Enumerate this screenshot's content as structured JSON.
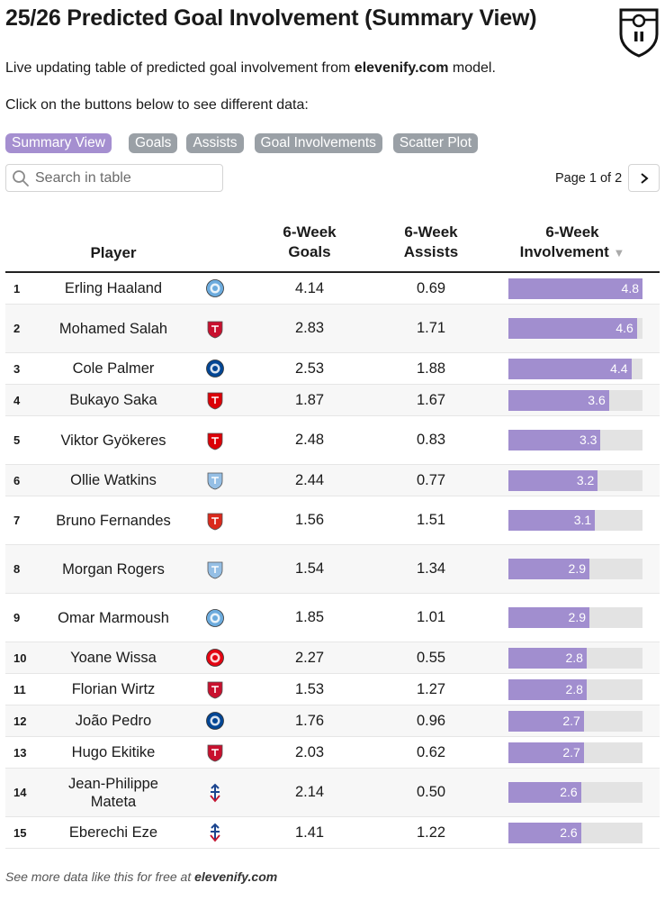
{
  "header": {
    "title": "25/26 Predicted Goal Involvement (Summary View)",
    "subtitle_prefix": "Live updating table of predicted goal involvement from ",
    "subtitle_site": "elevenify.com",
    "subtitle_suffix": " model.",
    "instructions": "Click on the buttons below to see different data:"
  },
  "buttons": [
    {
      "label": "Summary View",
      "active": true
    },
    {
      "label": "Goals",
      "active": false
    },
    {
      "label": "Assists",
      "active": false
    },
    {
      "label": "Goal Involvements",
      "active": false
    },
    {
      "label": "Scatter Plot",
      "active": false
    }
  ],
  "search": {
    "placeholder": "Search in table"
  },
  "pager": {
    "text": "Page 1 of 2"
  },
  "columns": {
    "player": "Player",
    "goals_line1": "6-Week",
    "goals_line2": "Goals",
    "assists_line1": "6-Week",
    "assists_line2": "Assists",
    "involvement_line1": "6-Week",
    "involvement_line2": "Involvement",
    "sort_indicator": "▼"
  },
  "involvement_max": 4.8,
  "rows": [
    {
      "rank": "1",
      "player": "Erling Haaland",
      "club": "man-city-crest",
      "goals": "4.14",
      "assists": "0.69",
      "involvement": 4.8,
      "involvement_label": "4.8"
    },
    {
      "rank": "2",
      "player": "Mohamed Salah",
      "club": "liverpool-crest",
      "goals": "2.83",
      "assists": "1.71",
      "involvement": 4.6,
      "involvement_label": "4.6"
    },
    {
      "rank": "3",
      "player": "Cole Palmer",
      "club": "chelsea-crest",
      "goals": "2.53",
      "assists": "1.88",
      "involvement": 4.4,
      "involvement_label": "4.4"
    },
    {
      "rank": "4",
      "player": "Bukayo Saka",
      "club": "arsenal-crest",
      "goals": "1.87",
      "assists": "1.67",
      "involvement": 3.6,
      "involvement_label": "3.6"
    },
    {
      "rank": "5",
      "player": "Viktor Gyökeres",
      "club": "arsenal-crest",
      "goals": "2.48",
      "assists": "0.83",
      "involvement": 3.3,
      "involvement_label": "3.3"
    },
    {
      "rank": "6",
      "player": "Ollie Watkins",
      "club": "aston-villa-crest",
      "goals": "2.44",
      "assists": "0.77",
      "involvement": 3.2,
      "involvement_label": "3.2"
    },
    {
      "rank": "7",
      "player": "Bruno Fernandes",
      "club": "man-united-crest",
      "goals": "1.56",
      "assists": "1.51",
      "involvement": 3.1,
      "involvement_label": "3.1"
    },
    {
      "rank": "8",
      "player": "Morgan Rogers",
      "club": "aston-villa-crest",
      "goals": "1.54",
      "assists": "1.34",
      "involvement": 2.9,
      "involvement_label": "2.9"
    },
    {
      "rank": "9",
      "player": "Omar Marmoush",
      "club": "man-city-crest",
      "goals": "1.85",
      "assists": "1.01",
      "involvement": 2.9,
      "involvement_label": "2.9"
    },
    {
      "rank": "10",
      "player": "Yoane Wissa",
      "club": "brentford-crest",
      "goals": "2.27",
      "assists": "0.55",
      "involvement": 2.8,
      "involvement_label": "2.8"
    },
    {
      "rank": "11",
      "player": "Florian Wirtz",
      "club": "liverpool-crest",
      "goals": "1.53",
      "assists": "1.27",
      "involvement": 2.8,
      "involvement_label": "2.8"
    },
    {
      "rank": "12",
      "player": "João Pedro",
      "club": "chelsea-crest",
      "goals": "1.76",
      "assists": "0.96",
      "involvement": 2.7,
      "involvement_label": "2.7"
    },
    {
      "rank": "13",
      "player": "Hugo Ekitike",
      "club": "liverpool-crest",
      "goals": "2.03",
      "assists": "0.62",
      "involvement": 2.7,
      "involvement_label": "2.7"
    },
    {
      "rank": "14",
      "player": "Jean-Philippe Mateta",
      "club": "crystal-palace-crest",
      "goals": "2.14",
      "assists": "0.50",
      "involvement": 2.6,
      "involvement_label": "2.6"
    },
    {
      "rank": "15",
      "player": "Eberechi Eze",
      "club": "crystal-palace-crest",
      "goals": "1.41",
      "assists": "1.22",
      "involvement": 2.6,
      "involvement_label": "2.6"
    }
  ],
  "footer": {
    "prefix": "See more data like this for free at ",
    "site": "elevenify.com"
  },
  "colors": {
    "accent": "#a18ecf",
    "button_inactive": "#9aa0a6",
    "man-city-crest": "#6cabdd",
    "liverpool-crest": "#c8102e",
    "chelsea-crest": "#034694",
    "arsenal-crest": "#db0007",
    "aston-villa-crest": "#95bfe5",
    "man-united-crest": "#da291c",
    "brentford-crest": "#e30613",
    "crystal-palace-crest": "#1b458f"
  }
}
